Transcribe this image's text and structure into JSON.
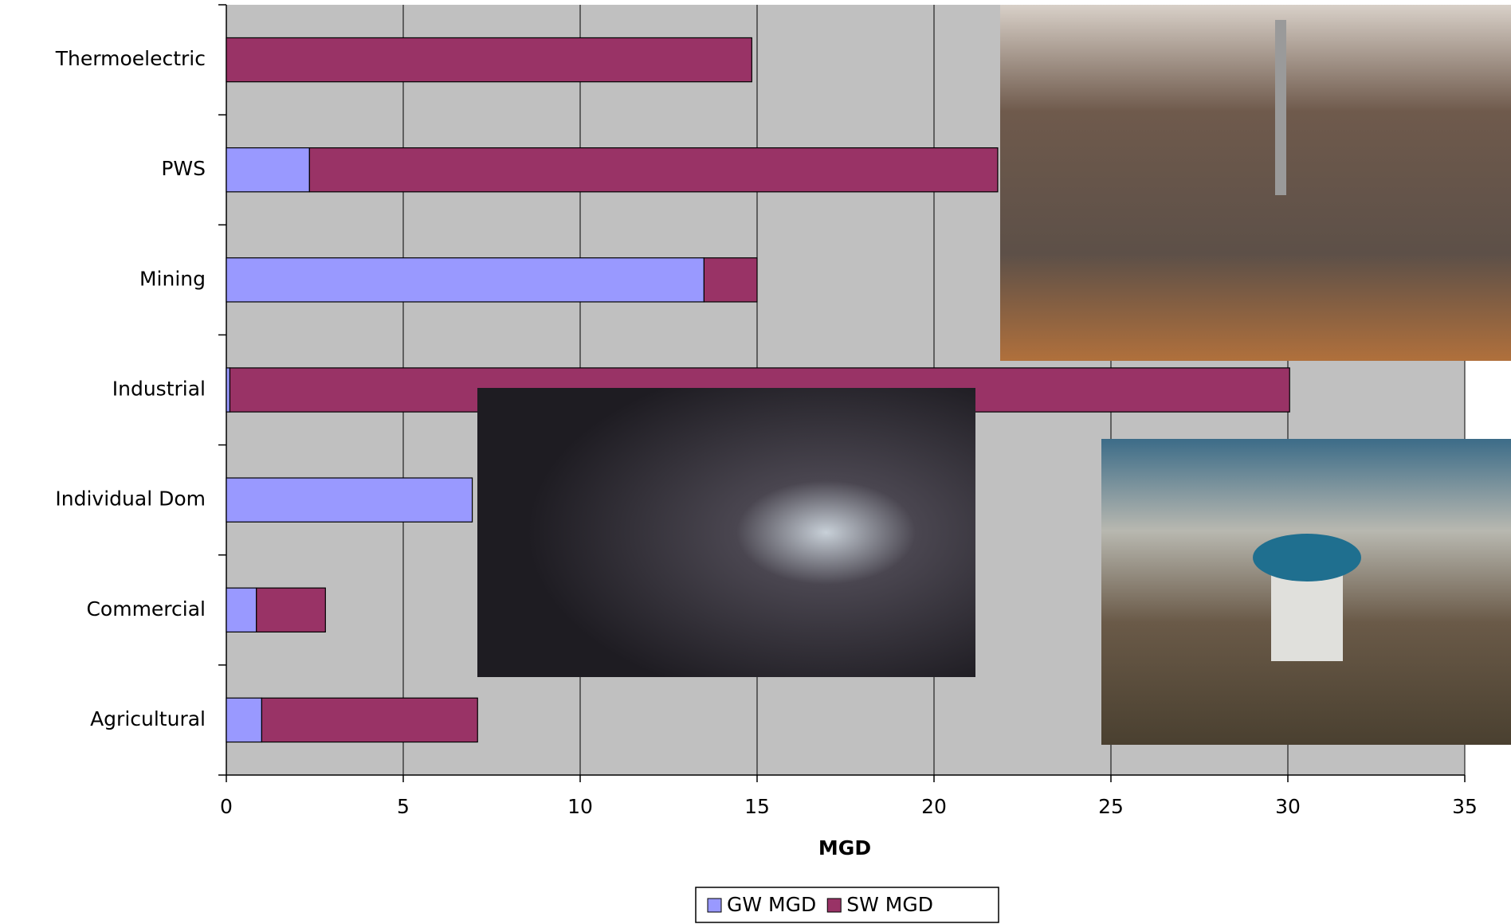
{
  "chart_data": {
    "type": "stacked-bar-horizontal",
    "categories": [
      "Thermoelectric",
      "PWS",
      "Mining",
      "Industrial",
      "Individual Dom",
      "Commercial",
      "Agricultural"
    ],
    "series": [
      {
        "name": "GW MGD",
        "color": "#9999ff",
        "values": [
          0,
          2.35,
          13.5,
          0.1,
          6.95,
          0.85,
          1.0
        ]
      },
      {
        "name": "SW MGD",
        "color": "#993366",
        "values": [
          14.85,
          19.45,
          1.5,
          29.95,
          0,
          1.95,
          6.1
        ]
      }
    ],
    "x_label": "MGD",
    "xlim": [
      0,
      35
    ],
    "xticks": [
      0,
      5,
      10,
      15,
      20,
      25,
      30,
      35
    ],
    "grid": true,
    "legend": "bottom",
    "background": "#c0c0c0"
  }
}
